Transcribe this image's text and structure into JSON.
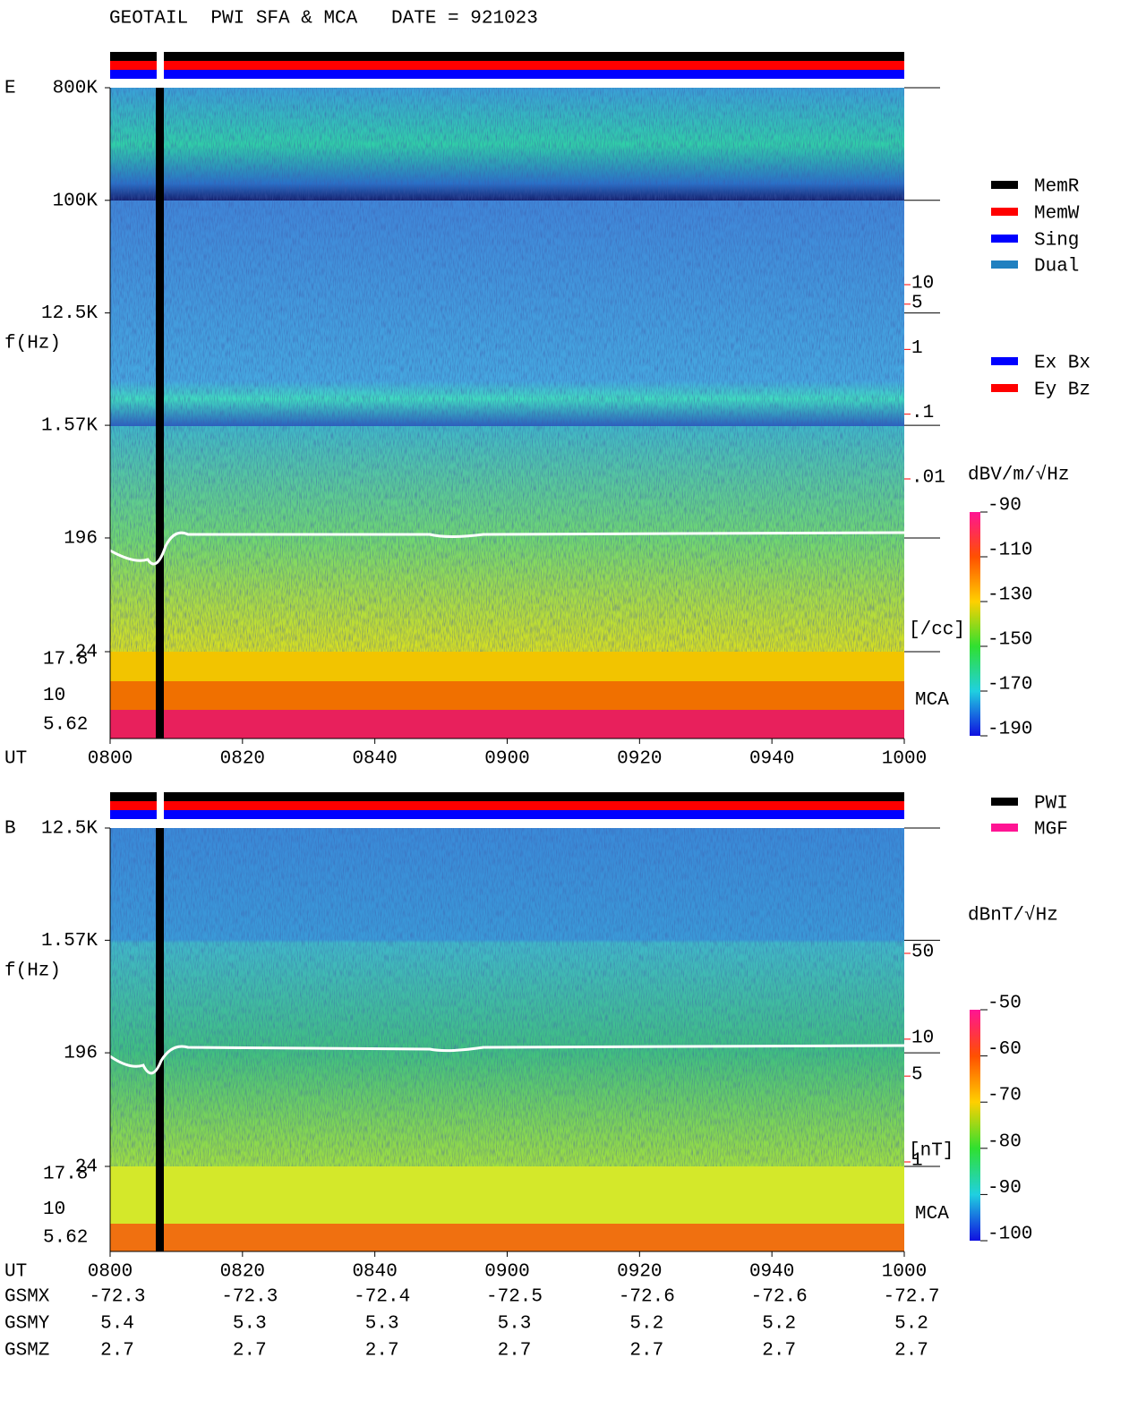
{
  "title": "GEOTAIL  PWI SFA & MCA   DATE = 921023",
  "chart_data": [
    {
      "type": "spectrogram",
      "component": "E",
      "y_label": "f(Hz)",
      "x_label": "UT",
      "x": [
        "0800",
        "0820",
        "0840",
        "0900",
        "0920",
        "0940",
        "1000"
      ],
      "ylim": [
        24,
        800000
      ],
      "log_y": true,
      "yticks": [
        {
          "value": 800000,
          "label": "800K"
        },
        {
          "value": 100000,
          "label": "100K"
        },
        {
          "value": 12500,
          "label": "12.5K"
        },
        {
          "value": 1570,
          "label": "1.57K"
        },
        196,
        24
      ],
      "mca_ticks": [
        17.8,
        10,
        5.62
      ],
      "mca_label": "MCA",
      "colorbar": {
        "label": "dBV/m/√Hz",
        "lim": [
          -190,
          -90
        ],
        "ticks": [
          -90,
          -110,
          -130,
          -150,
          -170,
          -190
        ]
      },
      "density": {
        "unit": "[/cc]",
        "lim": [
          0.01,
          10
        ],
        "ticks": [
          10,
          5,
          1,
          {
            "value": 0.1,
            "label": ".1"
          },
          {
            "value": 0.01,
            "label": ".01"
          }
        ]
      },
      "legend": [
        {
          "name": "MemR",
          "color": "#000000"
        },
        {
          "name": "MemW",
          "color": "#ff0000"
        },
        {
          "name": "Sing",
          "color": "#0000ff"
        },
        {
          "name": "Dual",
          "color": "#2080c0"
        }
      ],
      "channel_legend": [
        {
          "name": "Ex Bx",
          "color": "#0000ff"
        },
        {
          "name": "Ey Bz",
          "color": "#ff0000"
        }
      ]
    },
    {
      "type": "spectrogram",
      "component": "B",
      "y_label": "f(Hz)",
      "x_label": "UT",
      "x": [
        "0800",
        "0820",
        "0840",
        "0900",
        "0920",
        "0940",
        "1000"
      ],
      "ylim": [
        24,
        12500
      ],
      "log_y": true,
      "yticks": [
        {
          "value": 12500,
          "label": "12.5K"
        },
        {
          "value": 1570,
          "label": "1.57K"
        },
        196,
        24
      ],
      "mca_ticks": [
        17.8,
        10,
        5.62
      ],
      "mca_label": "MCA",
      "colorbar": {
        "label": "dBnT/√Hz",
        "lim": [
          -100,
          -50
        ],
        "ticks": [
          -50,
          -60,
          -70,
          -80,
          -90,
          -100
        ]
      },
      "density": {
        "unit": "[nT]",
        "lim": [
          1,
          50
        ],
        "ticks": [
          50,
          10,
          5,
          1
        ]
      },
      "legend": [
        {
          "name": "PWI",
          "color": "#000000"
        },
        {
          "name": "MGF",
          "color": "#ff1493"
        }
      ]
    }
  ],
  "orbit": [
    {
      "name": "GSMX",
      "values": [
        -72.3,
        -72.3,
        -72.4,
        -72.5,
        -72.6,
        -72.6,
        -72.7
      ]
    },
    {
      "name": "GSMY",
      "values": [
        5.4,
        5.3,
        5.3,
        5.3,
        5.2,
        5.2,
        5.2
      ]
    },
    {
      "name": "GSMZ",
      "values": [
        2.7,
        2.7,
        2.7,
        2.7,
        2.7,
        2.7,
        2.7
      ]
    }
  ]
}
